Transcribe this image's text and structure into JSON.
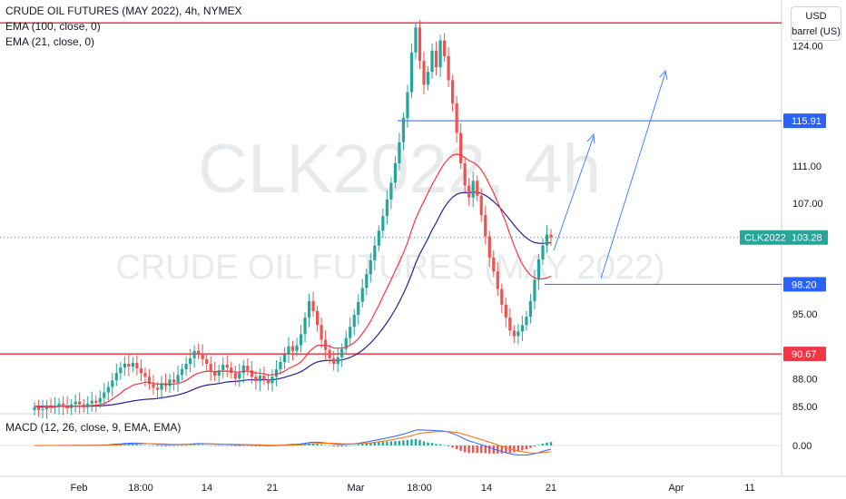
{
  "header": {
    "title": "CRUDE OIL FUTURES (MAY 2022), 4h, NYMEX",
    "ema100": "EMA (100, close, 0)",
    "ema21": "EMA (21, close, 0)",
    "macd": "MACD (12, 26, close, 9, EMA, EMA)"
  },
  "watermark": {
    "symbol": "CLK2022, 4h",
    "name": "CRUDE OIL FUTURES (MAY 2022)"
  },
  "units": {
    "currency": "USD",
    "unit": "barrel (US)"
  },
  "colors": {
    "up": "#26a69a",
    "down": "#ef5350",
    "ema21": "#f23645",
    "ema100": "#311b92",
    "hline_red": "#f23645",
    "hline_blue": "#2962ff",
    "price_tag": "#26a69a",
    "macd_line": "#2962ff",
    "signal_line": "#ff6d00"
  },
  "chart_data": {
    "type": "candlestick",
    "symbol_tag": "CLK2022",
    "last_price": 103.28,
    "y_axis": {
      "ticks": [
        "124.00",
        "115.91",
        "111.00",
        "107.00",
        "103.28",
        "98.20",
        "95.00",
        "90.67",
        "88.00",
        "85.00"
      ],
      "ylim": [
        84.0,
        128.0
      ]
    },
    "x_axis": {
      "ticks": [
        "Feb",
        "18:00",
        "14",
        "21",
        "Mar",
        "18:00",
        "14",
        "21",
        "Apr",
        "11"
      ]
    },
    "levels": [
      {
        "value": 126.5,
        "label": "126.50",
        "color": "red"
      },
      {
        "value": 90.67,
        "label": "90.67",
        "color": "red"
      },
      {
        "value": 115.91,
        "label": "115.91",
        "color": "blue"
      },
      {
        "value": 98.2,
        "label": "98.20",
        "color": "blue"
      }
    ],
    "closes": [
      84.9,
      84.6,
      84.7,
      85.1,
      84.9,
      85.0,
      85.3,
      85.1,
      84.8,
      85.2,
      85.5,
      85.2,
      84.9,
      85.3,
      85.6,
      85.4,
      85.9,
      86.5,
      87.1,
      87.8,
      88.6,
      89.2,
      89.6,
      89.3,
      89.7,
      89.1,
      88.6,
      88.2,
      87.4,
      87.0,
      86.8,
      87.5,
      87.2,
      87.9,
      87.6,
      88.4,
      89.0,
      89.6,
      90.2,
      91.0,
      90.7,
      90.1,
      89.6,
      88.8,
      88.3,
      88.9,
      89.5,
      89.2,
      88.6,
      88.0,
      88.6,
      89.4,
      88.9,
      88.2,
      87.7,
      88.3,
      87.9,
      87.5,
      88.2,
      89.0,
      89.8,
      90.6,
      91.5,
      91.0,
      91.6,
      92.8,
      94.6,
      96.4,
      95.3,
      93.8,
      92.2,
      91.1,
      90.2,
      89.6,
      90.3,
      91.2,
      92.4,
      93.6,
      94.9,
      96.3,
      97.8,
      99.3,
      100.8,
      102.4,
      104.0,
      105.6,
      107.4,
      109.2,
      111.3,
      113.6,
      116.2,
      119.0,
      123.3,
      126.0,
      122.4,
      119.8,
      121.2,
      123.5,
      121.7,
      124.6,
      122.9,
      120.3,
      117.8,
      114.6,
      111.3,
      108.9,
      107.6,
      109.4,
      107.8,
      105.7,
      103.4,
      101.1,
      99.6,
      97.7,
      96.0,
      94.6,
      93.2,
      92.6,
      93.1,
      93.8,
      94.7,
      96.4,
      98.7,
      100.9,
      102.4,
      103.6,
      103.28
    ],
    "ema21": [
      85.0,
      84.9,
      84.9,
      84.9,
      84.9,
      84.9,
      85.0,
      85.0,
      84.9,
      85.0,
      85.0,
      85.0,
      85.0,
      85.0,
      85.1,
      85.1,
      85.2,
      85.3,
      85.5,
      85.8,
      86.1,
      86.4,
      86.8,
      87.0,
      87.3,
      87.4,
      87.5,
      87.6,
      87.6,
      87.5,
      87.4,
      87.4,
      87.4,
      87.4,
      87.4,
      87.5,
      87.6,
      87.8,
      88.1,
      88.4,
      88.6,
      88.7,
      88.8,
      88.8,
      88.7,
      88.8,
      88.8,
      88.8,
      88.8,
      88.7,
      88.7,
      88.8,
      88.8,
      88.7,
      88.6,
      88.6,
      88.5,
      88.4,
      88.4,
      88.5,
      88.6,
      88.8,
      89.1,
      89.3,
      89.5,
      89.8,
      90.3,
      90.9,
      91.3,
      91.6,
      91.6,
      91.6,
      91.5,
      91.3,
      91.3,
      91.3,
      91.4,
      91.6,
      91.9,
      92.3,
      92.9,
      93.5,
      94.2,
      95.1,
      95.9,
      96.9,
      97.8,
      98.7,
      99.7,
      100.6,
      101.6,
      102.7,
      104.1,
      105.3,
      106.3,
      107.2,
      108.1,
      109.0,
      109.8,
      110.6,
      111.3,
      111.8,
      112.2,
      112.3,
      112.2,
      111.9,
      111.6,
      111.4,
      111.1,
      110.6,
      109.9,
      109.0,
      108.1,
      107.1,
      106.0,
      104.9,
      103.6,
      102.4,
      101.3,
      100.4,
      99.7,
      99.2,
      98.9,
      98.8,
      98.8,
      98.9,
      99.1
    ]
  }
}
